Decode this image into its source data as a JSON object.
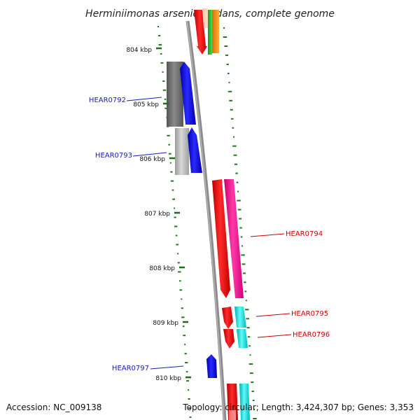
{
  "title": "Herminiimonas arsenicoxydans, complete genome",
  "ticks": [
    {
      "label": "804 kbp",
      "kbp": 804
    },
    {
      "label": "805 kbp",
      "kbp": 805
    },
    {
      "label": "806 kbp",
      "kbp": 806
    },
    {
      "label": "807 kbp",
      "kbp": 807
    },
    {
      "label": "808 kbp",
      "kbp": 808
    },
    {
      "label": "809 kbp",
      "kbp": 809
    },
    {
      "label": "810 kbp",
      "kbp": 810
    }
  ],
  "genes": [
    {
      "label": "HEAR0792",
      "strand": "reverse",
      "color": "#1a1ab8"
    },
    {
      "label": "HEAR0793",
      "strand": "reverse",
      "color": "#1a1ab8"
    },
    {
      "label": "HEAR0794",
      "strand": "forward",
      "color": "#cc0000"
    },
    {
      "label": "HEAR0795",
      "strand": "forward",
      "color": "#cc0000"
    },
    {
      "label": "HEAR0796",
      "strand": "forward",
      "color": "#cc0000"
    },
    {
      "label": "HEAR0797",
      "strand": "reverse",
      "color": "#1a1ab8"
    }
  ],
  "footer": {
    "accession": "Accession: NC_009138",
    "topology": "Topology: circular; Length: 3,424,307 bp; Genes: 3,353"
  },
  "colors": {
    "backbone": "#8c8c8c",
    "gc_skew": "#1f7a1f",
    "forward_gene": "#ff0000",
    "reverse_gene": "#0000ff",
    "cog_magenta": "#ff1493",
    "cog_cyan": "#00e5e5",
    "cog_gray": "#777777"
  }
}
